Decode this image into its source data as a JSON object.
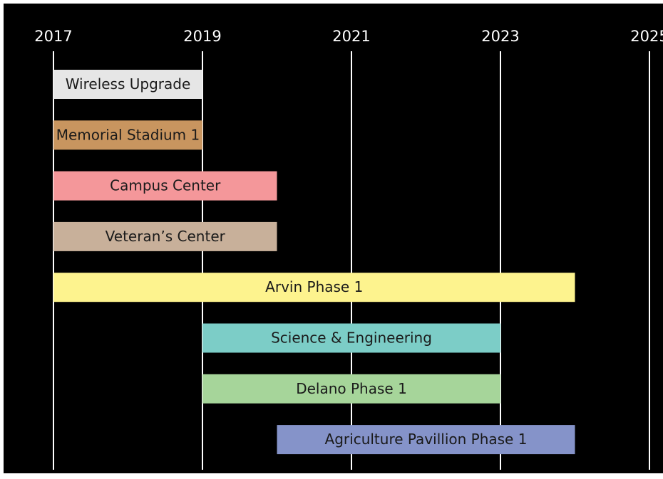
{
  "chart_data": {
    "type": "gantt",
    "xlim": [
      2017,
      2025
    ],
    "xticks": [
      2017,
      2019,
      2021,
      2023,
      2025
    ],
    "grid": true,
    "tasks": [
      {
        "name": "Wireless Upgrade",
        "start": 2017,
        "end": 2019,
        "color": "#e6e6e6"
      },
      {
        "name": "Memorial Stadium 1",
        "start": 2017,
        "end": 2019,
        "color": "#c8955f"
      },
      {
        "name": "Campus Center",
        "start": 2017,
        "end": 2020,
        "color": "#f4979a"
      },
      {
        "name": "Veteran’s Center",
        "start": 2017,
        "end": 2020,
        "color": "#c8b09a"
      },
      {
        "name": "Arvin Phase 1",
        "start": 2017,
        "end": 2024,
        "color": "#fdf38e"
      },
      {
        "name": "Science & Engineering",
        "start": 2019,
        "end": 2023,
        "color": "#7ccdc7"
      },
      {
        "name": "Delano Phase 1",
        "start": 2019,
        "end": 2023,
        "color": "#a6d59a"
      },
      {
        "name": "Agriculture Pavillion Phase 1",
        "start": 2020,
        "end": 2024,
        "color": "#8593c9"
      }
    ]
  }
}
